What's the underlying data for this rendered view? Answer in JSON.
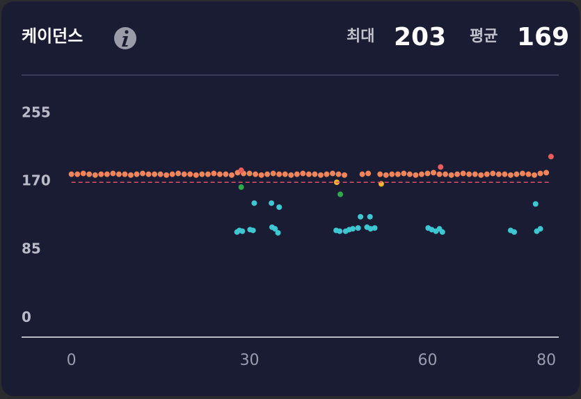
{
  "chart_data": {
    "type": "scatter",
    "title": "케이던스",
    "stats": [
      {
        "label": "최대",
        "value": 203
      },
      {
        "label": "평균",
        "value": 169
      }
    ],
    "xlim": [
      -8.4,
      82.1
    ],
    "ylim": [
      -24,
      300
    ],
    "xticks": [
      0,
      30,
      60,
      80
    ],
    "yticks": [
      0,
      85,
      170,
      255
    ],
    "grid": false,
    "series": [
      {
        "color": "#f0845a",
        "x": [
          0,
          1,
          2,
          3,
          4,
          5,
          6,
          7,
          8,
          9,
          10,
          11,
          12,
          13,
          14,
          15,
          16,
          17,
          18,
          19,
          20,
          21,
          22,
          23,
          24,
          25,
          26,
          27,
          28,
          29,
          30,
          31,
          32,
          33,
          34,
          35,
          36,
          37,
          38,
          39,
          40,
          41,
          42,
          43,
          44,
          45,
          46,
          49,
          50,
          52,
          53,
          54,
          55,
          56,
          57,
          58,
          59,
          60,
          61,
          62,
          63,
          64,
          65,
          66,
          67,
          68,
          69,
          70,
          71,
          72,
          73,
          74,
          75,
          76,
          77,
          78,
          79,
          80
        ],
        "values": [
          179,
          179,
          180,
          179,
          178,
          179,
          179,
          180,
          179,
          179,
          178,
          179,
          180,
          179,
          179,
          179,
          178,
          179,
          180,
          179,
          179,
          178,
          179,
          179,
          180,
          179,
          179,
          178,
          181,
          180,
          180,
          179,
          178,
          179,
          180,
          179,
          179,
          178,
          179,
          180,
          179,
          179,
          178,
          179,
          180,
          179,
          178,
          179,
          180,
          179,
          178,
          179,
          179,
          180,
          179,
          178,
          179,
          180,
          181,
          179,
          179,
          178,
          179,
          180,
          179,
          179,
          178,
          179,
          180,
          179,
          179,
          178,
          179,
          180,
          179,
          178,
          180,
          181
        ]
      },
      {
        "color": "#3ec6d2",
        "x": [
          27.9,
          28.3,
          28.8,
          30.1,
          30.6,
          33.8,
          34.3,
          34.8,
          44.6,
          45.2,
          46.2,
          46.8,
          47.4,
          48.3,
          49.8,
          50.4,
          51.1,
          60.1,
          60.7,
          61.4,
          62.0,
          62.5,
          74.0,
          74.6,
          78.4,
          79.0,
          30.8,
          33.7,
          35.0,
          48.7,
          50.3,
          78.2
        ],
        "values": [
          107,
          109,
          108,
          110,
          109,
          113,
          111,
          106,
          109,
          108,
          108,
          110,
          111,
          112,
          113,
          111,
          112,
          112,
          110,
          108,
          111,
          107,
          109,
          107,
          108,
          111,
          143,
          143,
          138,
          126,
          126,
          142
        ]
      },
      {
        "color": "#2faa4a",
        "x": [
          28.6,
          45.3
        ],
        "values": [
          163,
          154
        ]
      },
      {
        "color": "#f2b233",
        "x": [
          44.7,
          52.2
        ],
        "values": [
          169,
          167
        ]
      },
      {
        "color": "#e85d5d",
        "x": [
          28.6,
          62.2,
          80.8
        ],
        "values": [
          184,
          188,
          201
        ]
      }
    ]
  }
}
